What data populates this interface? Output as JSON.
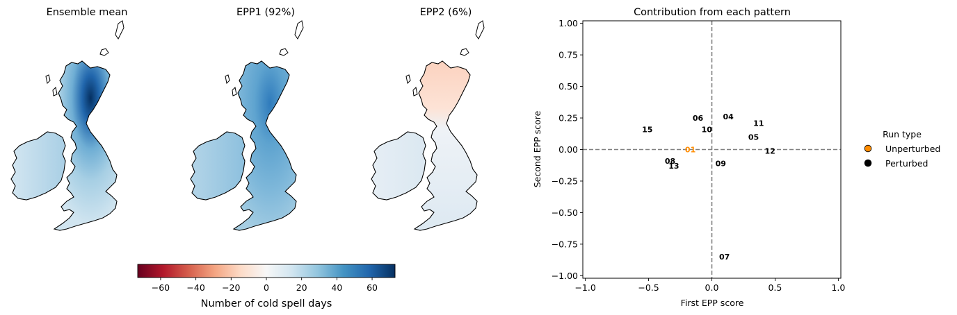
{
  "maps": {
    "panels": [
      {
        "title": "Ensemble mean",
        "tone": "strong-blue"
      },
      {
        "title": "EPP1 (92%)",
        "tone": "medium-blue"
      },
      {
        "title": "EPP2 (6%)",
        "tone": "mixed-red-north"
      }
    ],
    "colorbar": {
      "label": "Number of cold spell days",
      "ticks": [
        "−60",
        "−40",
        "−20",
        "0",
        "20",
        "40",
        "60"
      ],
      "tick_values": [
        -60,
        -40,
        -20,
        0,
        20,
        40,
        60
      ],
      "range": [
        -73,
        73
      ],
      "colormap": "RdBu",
      "colors": [
        "#67001f",
        "#b2182b",
        "#d6604d",
        "#f4a582",
        "#fddbc7",
        "#f7f7f7",
        "#d1e5f0",
        "#92c5de",
        "#4393c3",
        "#2166ac",
        "#053061"
      ]
    }
  },
  "chart_data": {
    "type": "scatter",
    "title": "Contribution from each pattern",
    "xlabel": "First EPP score",
    "ylabel": "Second EPP score",
    "xlim": [
      -1.02,
      1.02
    ],
    "ylim": [
      -1.02,
      1.02
    ],
    "xticks": [
      -1.0,
      -0.5,
      0.0,
      0.5,
      1.0
    ],
    "xtick_labels": [
      "−1.0",
      "−0.5",
      "0.0",
      "0.5",
      "1.0"
    ],
    "yticks": [
      1.0,
      0.75,
      0.5,
      0.25,
      0.0,
      -0.25,
      -0.5,
      -0.75,
      -1.0
    ],
    "ytick_labels": [
      "1.00",
      "0.75",
      "0.50",
      "0.25",
      "0.00",
      "−0.25",
      "−0.50",
      "−0.75",
      "−1.00"
    ],
    "grid": false,
    "reference_lines": {
      "x": 0.0,
      "y": 0.0,
      "style": "dashed",
      "color": "#808080"
    },
    "legend": {
      "title": "Run type",
      "placement": "outside-right",
      "entries": [
        {
          "label": "Unperturbed",
          "color": "#ff8c00"
        },
        {
          "label": "Perturbed",
          "color": "#000000"
        }
      ]
    },
    "points": [
      {
        "label": "01",
        "x": -0.17,
        "y": 0.0,
        "run_type": "Unperturbed"
      },
      {
        "label": "04",
        "x": 0.13,
        "y": 0.26,
        "run_type": "Perturbed"
      },
      {
        "label": "05",
        "x": 0.33,
        "y": 0.1,
        "run_type": "Perturbed"
      },
      {
        "label": "06",
        "x": -0.11,
        "y": 0.25,
        "run_type": "Perturbed"
      },
      {
        "label": "07",
        "x": 0.1,
        "y": -0.85,
        "run_type": "Perturbed"
      },
      {
        "label": "08",
        "x": -0.33,
        "y": -0.09,
        "run_type": "Perturbed"
      },
      {
        "label": "09",
        "x": 0.07,
        "y": -0.11,
        "run_type": "Perturbed"
      },
      {
        "label": "10",
        "x": -0.04,
        "y": 0.16,
        "run_type": "Perturbed"
      },
      {
        "label": "11",
        "x": 0.37,
        "y": 0.21,
        "run_type": "Perturbed"
      },
      {
        "label": "12",
        "x": 0.46,
        "y": -0.01,
        "run_type": "Perturbed"
      },
      {
        "label": "13",
        "x": -0.3,
        "y": -0.13,
        "run_type": "Perturbed"
      },
      {
        "label": "15",
        "x": -0.51,
        "y": 0.16,
        "run_type": "Perturbed"
      }
    ]
  }
}
